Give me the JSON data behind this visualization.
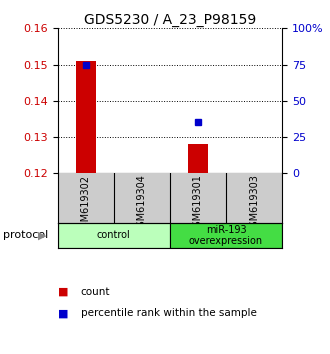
{
  "title": "GDS5230 / A_23_P98159",
  "samples": [
    "GSM619302",
    "GSM619304",
    "GSM619301",
    "GSM619303"
  ],
  "bar_values": [
    0.151,
    null,
    0.128,
    null
  ],
  "scatter_values": [
    0.15,
    null,
    0.134,
    null
  ],
  "ylim": [
    0.12,
    0.16
  ],
  "yticks_left": [
    0.12,
    0.13,
    0.14,
    0.15,
    0.16
  ],
  "yticks_right_pct": [
    0,
    25,
    50,
    75,
    100
  ],
  "bar_color": "#cc0000",
  "scatter_color": "#0000cc",
  "bar_width": 0.35,
  "groups": [
    {
      "label": "control",
      "indices": [
        0,
        1
      ],
      "color": "#bbffbb"
    },
    {
      "label": "miR-193\noverexpression",
      "indices": [
        2,
        3
      ],
      "color": "#44dd44"
    }
  ],
  "title_fontsize": 10,
  "tick_fontsize": 8,
  "bg_plot": "#ffffff",
  "bg_figure": "#ffffff",
  "sample_box_color": "#cccccc"
}
